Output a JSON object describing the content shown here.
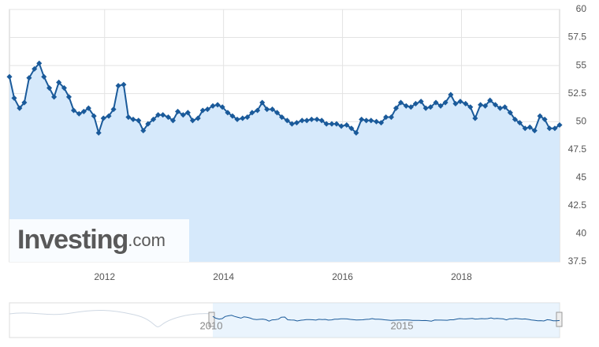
{
  "chart_data": {
    "type": "line",
    "logo": {
      "brand": "Investing",
      "suffix": ".com"
    },
    "x": [
      2010.4,
      2010.48,
      2010.57,
      2010.65,
      2010.73,
      2010.82,
      2010.9,
      2010.98,
      2011.07,
      2011.15,
      2011.23,
      2011.32,
      2011.4,
      2011.48,
      2011.57,
      2011.65,
      2011.73,
      2011.82,
      2011.9,
      2011.98,
      2012.07,
      2012.15,
      2012.23,
      2012.32,
      2012.4,
      2012.48,
      2012.57,
      2012.65,
      2012.73,
      2012.82,
      2012.9,
      2012.98,
      2013.07,
      2013.15,
      2013.23,
      2013.32,
      2013.4,
      2013.48,
      2013.57,
      2013.65,
      2013.73,
      2013.82,
      2013.9,
      2013.98,
      2014.07,
      2014.15,
      2014.23,
      2014.32,
      2014.4,
      2014.48,
      2014.57,
      2014.65,
      2014.73,
      2014.82,
      2014.9,
      2014.98,
      2015.07,
      2015.15,
      2015.23,
      2015.32,
      2015.4,
      2015.48,
      2015.57,
      2015.65,
      2015.73,
      2015.82,
      2015.9,
      2015.98,
      2016.07,
      2016.15,
      2016.23,
      2016.32,
      2016.4,
      2016.48,
      2016.57,
      2016.65,
      2016.73,
      2016.82,
      2016.9,
      2016.98,
      2017.07,
      2017.15,
      2017.23,
      2017.32,
      2017.4,
      2017.48,
      2017.57,
      2017.65,
      2017.73,
      2017.82,
      2017.9,
      2017.98,
      2018.07,
      2018.15,
      2018.23,
      2018.32,
      2018.4,
      2018.48,
      2018.57,
      2018.65,
      2018.73,
      2018.82,
      2018.9,
      2018.98,
      2019.07,
      2019.15,
      2019.23,
      2019.32,
      2019.4,
      2019.48,
      2019.57,
      2019.65
    ],
    "series": [
      {
        "color": "#1a5a9a",
        "fill": "#d6e9fb",
        "values": [
          54.0,
          52.1,
          51.2,
          51.7,
          53.9,
          54.7,
          55.2,
          54.0,
          53.0,
          52.2,
          53.5,
          53.0,
          52.2,
          51.0,
          50.7,
          50.9,
          51.2,
          50.5,
          49.0,
          50.3,
          50.5,
          51.1,
          53.2,
          53.3,
          50.4,
          50.2,
          50.1,
          49.2,
          49.8,
          50.2,
          50.6,
          50.6,
          50.4,
          50.1,
          50.9,
          50.6,
          50.8,
          50.1,
          50.3,
          51.0,
          51.1,
          51.4,
          51.5,
          51.3,
          50.8,
          50.5,
          50.2,
          50.3,
          50.4,
          50.8,
          51.0,
          51.7,
          51.1,
          51.1,
          50.8,
          50.4,
          50.1,
          49.8,
          49.9,
          50.1,
          50.1,
          50.2,
          50.2,
          50.1,
          49.8,
          49.8,
          49.8,
          49.6,
          49.7,
          49.4,
          49.0,
          50.2,
          50.1,
          50.1,
          50.0,
          49.9,
          50.4,
          50.4,
          51.2,
          51.7,
          51.4,
          51.3,
          51.6,
          51.8,
          51.2,
          51.3,
          51.7,
          51.4,
          51.7,
          52.4,
          51.6,
          51.8,
          51.6,
          51.3,
          50.3,
          51.5,
          51.4,
          51.9,
          51.5,
          51.2,
          51.3,
          50.8,
          50.2,
          49.9,
          49.4,
          49.5,
          49.2,
          50.5,
          50.2,
          49.4,
          49.4,
          49.7
        ]
      }
    ],
    "xlim": [
      2010.4,
      2019.65
    ],
    "xticks": [
      2012,
      2014,
      2016,
      2018
    ],
    "ylim": [
      37.5,
      60
    ],
    "yticks": [
      37.5,
      40,
      42.5,
      45,
      47.5,
      50,
      52.5,
      55,
      57.5,
      60
    ],
    "grid": true,
    "navigator": {
      "labels": [
        2010,
        2015
      ]
    }
  }
}
